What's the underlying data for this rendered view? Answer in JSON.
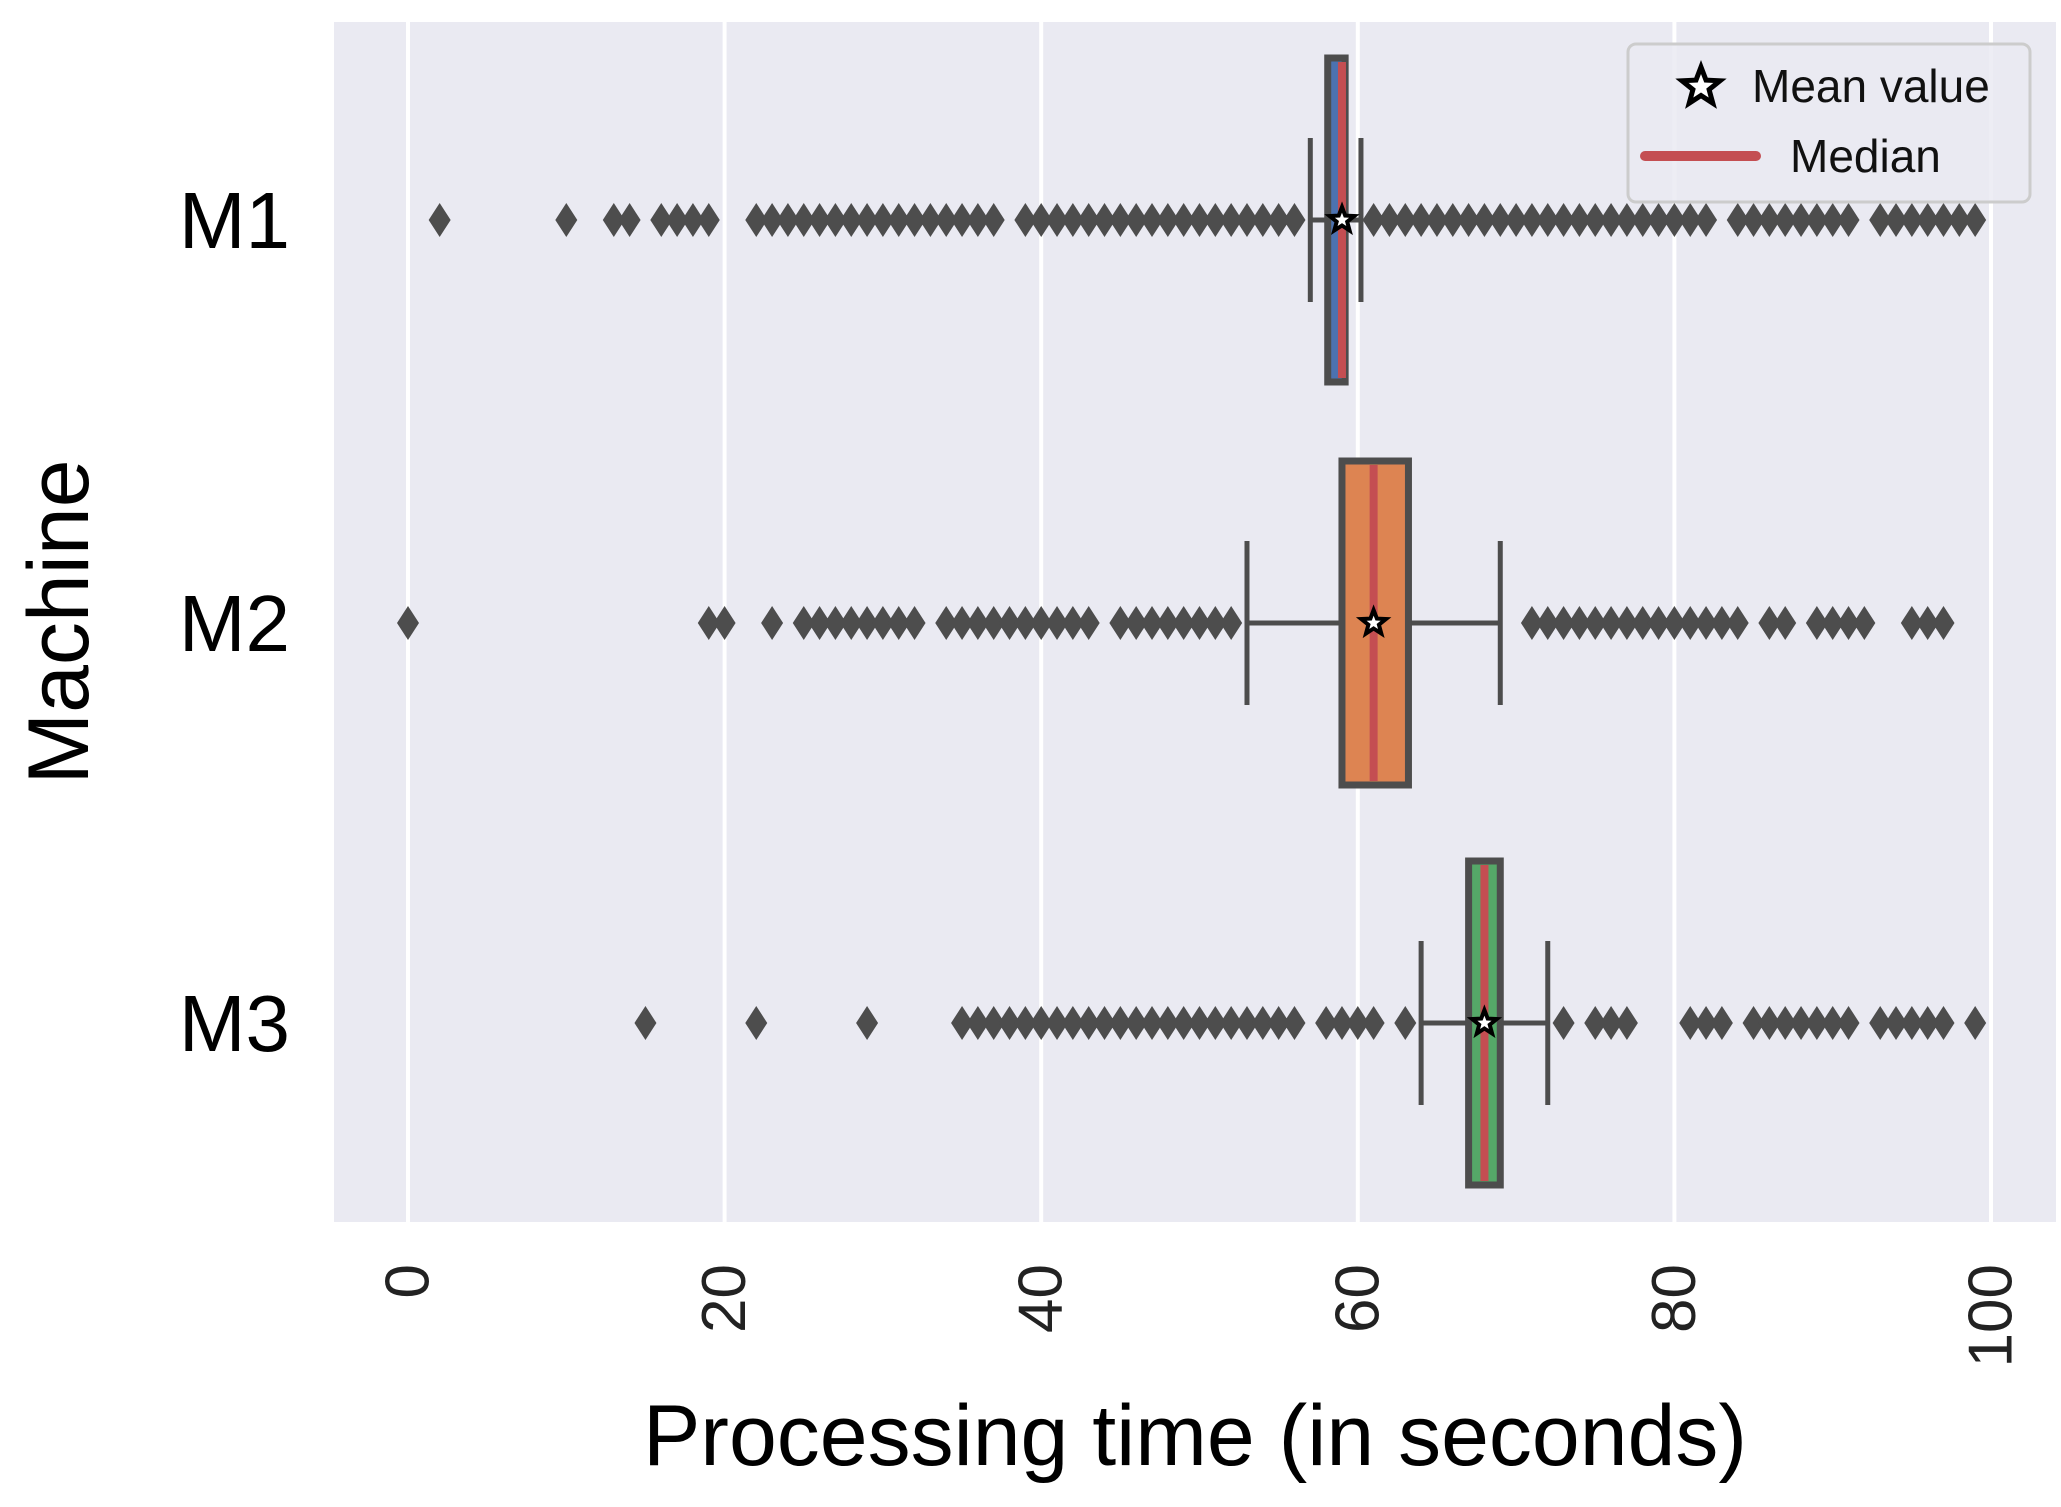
{
  "chart_data": {
    "type": "boxplot",
    "orientation": "horizontal",
    "title": "",
    "xlabel": "Processing time (in seconds)",
    "ylabel": "Machine",
    "xlim": [
      -2.5,
      101.5
    ],
    "xticks": [
      0,
      20,
      40,
      60,
      80,
      100
    ],
    "xtick_labels": [
      "0",
      "20",
      "40",
      "60",
      "80",
      "100"
    ],
    "grid": "vertical",
    "legend": {
      "position": "top-right",
      "entries": [
        {
          "label": "Mean value",
          "marker": "star"
        },
        {
          "label": "Median",
          "marker": "line",
          "color": "#c44e52"
        }
      ]
    },
    "series": [
      {
        "name": "M1",
        "color": "#4c72b0",
        "q1": 58.1,
        "median": 59.0,
        "q3": 59.2,
        "whisker_low": 57.0,
        "whisker_high": 60.2,
        "mean": 59.0,
        "outliers": [
          2,
          10,
          13,
          14,
          16,
          17,
          18,
          19,
          22,
          23,
          24,
          25,
          26,
          27,
          28,
          29,
          30,
          31,
          32,
          33,
          34,
          35,
          36,
          37,
          39,
          40,
          41,
          42,
          43,
          44,
          45,
          46,
          47,
          48,
          49,
          50,
          51,
          52,
          53,
          54,
          55,
          56,
          61,
          62,
          63,
          64,
          65,
          66,
          67,
          68,
          69,
          70,
          71,
          72,
          73,
          74,
          75,
          76,
          77,
          78,
          79,
          80,
          81,
          82,
          84,
          85,
          86,
          87,
          88,
          89,
          90,
          91,
          93,
          94,
          95,
          96,
          97,
          98,
          99
        ]
      },
      {
        "name": "M2",
        "color": "#dd8452",
        "q1": 59.0,
        "median": 61.0,
        "q3": 63.2,
        "whisker_low": 53.0,
        "whisker_high": 69.0,
        "mean": 61.0,
        "outliers": [
          0,
          19,
          20,
          23,
          25,
          26,
          27,
          28,
          29,
          30,
          31,
          32,
          34,
          35,
          36,
          37,
          38,
          39,
          40,
          41,
          42,
          43,
          45,
          46,
          47,
          48,
          49,
          50,
          51,
          52,
          71,
          72,
          73,
          74,
          75,
          76,
          77,
          78,
          79,
          80,
          81,
          82,
          83,
          84,
          86,
          87,
          89,
          90,
          91,
          92,
          95,
          96,
          97
        ]
      },
      {
        "name": "M3",
        "color": "#55a868",
        "q1": 67.0,
        "median": 68.0,
        "q3": 69.0,
        "whisker_low": 64.0,
        "whisker_high": 72.0,
        "mean": 68.0,
        "outliers": [
          15,
          22,
          29,
          35,
          36,
          37,
          38,
          39,
          40,
          41,
          42,
          43,
          44,
          45,
          46,
          47,
          48,
          49,
          50,
          51,
          52,
          53,
          54,
          55,
          56,
          58,
          59,
          60,
          61,
          63,
          73,
          75,
          76,
          77,
          81,
          82,
          83,
          85,
          86,
          87,
          88,
          89,
          90,
          91,
          93,
          94,
          95,
          96,
          97,
          99
        ]
      }
    ]
  }
}
